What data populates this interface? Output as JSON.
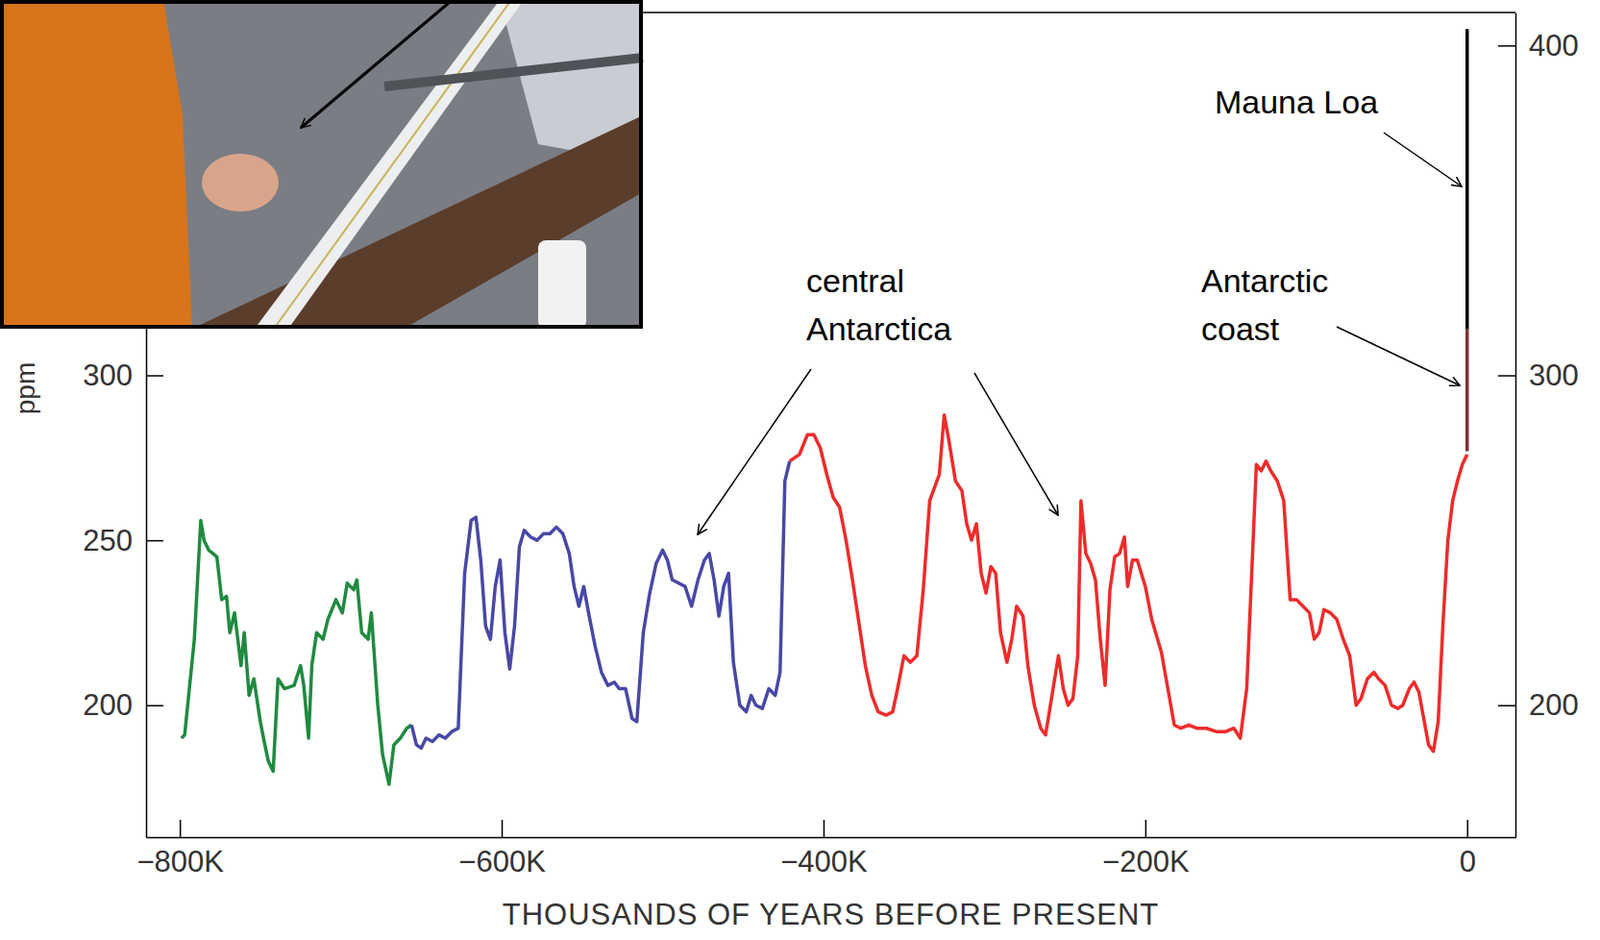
{
  "chart_data": {
    "type": "line",
    "xlabel": "THOUSANDS OF YEARS BEFORE PRESENT",
    "ylabel": "ppm",
    "xlim": [
      -821,
      30
    ],
    "ylim": [
      160,
      410
    ],
    "y2lim": [
      160,
      410
    ],
    "xticks": [
      {
        "value": -800,
        "label": "−800K"
      },
      {
        "value": -600,
        "label": "−600K"
      },
      {
        "value": -400,
        "label": "−400K"
      },
      {
        "value": -200,
        "label": "−200K"
      },
      0
    ],
    "yticks": [
      200,
      250,
      300
    ],
    "y2ticks": [
      200,
      300,
      400
    ],
    "annotations": [
      {
        "text": "Mauna Loa"
      },
      {
        "text": "central Antarctica"
      },
      {
        "text": "Antarctic coast"
      }
    ],
    "series": [
      {
        "color": "#1f8a3f",
        "x": [
          -799,
          -797,
          -791,
          -787,
          -785,
          -782,
          -777,
          -774,
          -771,
          -769,
          -766,
          -762,
          -760,
          -757,
          -754,
          -750,
          -748,
          -745,
          -743,
          -742,
          -739,
          -735,
          -729,
          -725,
          -723,
          -720,
          -718,
          -715,
          -711,
          -708,
          -703,
          -699,
          -696,
          -692,
          -690,
          -687,
          -683,
          -681,
          -677,
          -674,
          -670,
          -667,
          -663,
          -659,
          -656
        ],
        "values": [
          190,
          191,
          220,
          256,
          250,
          247,
          245,
          232,
          233,
          222,
          228,
          212,
          222,
          203,
          208,
          195,
          190,
          183,
          181,
          180,
          208,
          205,
          206,
          212,
          206,
          190,
          212,
          222,
          220,
          226,
          232,
          228,
          237,
          235,
          238,
          222,
          220,
          228,
          200,
          185,
          176,
          188,
          190,
          193,
          194
        ]
      },
      {
        "color": "#4848a6",
        "x": [
          -656,
          -653,
          -650,
          -647,
          -643,
          -639,
          -635,
          -631,
          -627,
          -623,
          -619,
          -616,
          -613,
          -610,
          -607,
          -604,
          -601,
          -598,
          -595,
          -592,
          -589,
          -586,
          -582,
          -578,
          -574,
          -570,
          -566,
          -562,
          -558,
          -555,
          -552,
          -549,
          -546,
          -542,
          -538,
          -534,
          -530,
          -527,
          -523,
          -519,
          -516,
          -512,
          -508,
          -504,
          -500,
          -497,
          -494,
          -490,
          -486,
          -482,
          -478,
          -474,
          -471,
          -468,
          -465,
          -462,
          -459,
          -456,
          -452,
          -448,
          -445,
          -442,
          -438,
          -434,
          -430,
          -427,
          -424,
          -421
        ],
        "values": [
          194,
          188,
          187,
          190,
          189,
          191,
          190,
          192,
          193,
          240,
          256,
          257,
          244,
          224,
          220,
          236,
          244,
          222,
          211,
          224,
          248,
          253,
          251,
          250,
          252,
          252,
          254,
          252,
          246,
          236,
          230,
          236,
          228,
          218,
          210,
          206,
          207,
          205,
          205,
          196,
          195,
          222,
          234,
          243,
          247,
          244,
          238,
          237,
          236,
          230,
          238,
          244,
          246,
          238,
          227,
          236,
          240,
          213,
          200,
          198,
          203,
          200,
          199,
          205,
          203,
          210,
          268,
          274
        ]
      },
      {
        "color": "#ee2b2b",
        "x": [
          -421,
          -415,
          -410,
          -406,
          -402,
          -398,
          -394,
          -390,
          -386,
          -382,
          -378,
          -374,
          -370,
          -366,
          -361,
          -357,
          -354,
          -350,
          -346,
          -342,
          -338,
          -334,
          -328,
          -325,
          -322,
          -318,
          -314,
          -311,
          -308,
          -305,
          -302,
          -299,
          -296,
          -293,
          -290,
          -286,
          -283,
          -280,
          -276,
          -273,
          -269,
          -265,
          -262,
          -258,
          -254,
          -251,
          -248,
          -245,
          -242,
          -240,
          -237,
          -234,
          -231,
          -228,
          -225,
          -222,
          -219,
          -216,
          -213,
          -211,
          -208,
          -205,
          -200,
          -196,
          -190,
          -186,
          -182,
          -178,
          -173,
          -168,
          -162,
          -156,
          -150,
          -145,
          -141,
          -137,
          -133,
          -131,
          -128,
          -125,
          -122,
          -118,
          -114,
          -110,
          -106,
          -102,
          -98,
          -95,
          -92,
          -89,
          -85,
          -81,
          -77,
          -73,
          -69,
          -66,
          -62,
          -58,
          -55,
          -51,
          -47,
          -43,
          -40,
          -36,
          -33,
          -30,
          -27,
          -24,
          -21,
          -18,
          -15,
          -12,
          -9,
          -6,
          -3,
          0
        ],
        "values": [
          274,
          276,
          282,
          282,
          278,
          270,
          263,
          260,
          250,
          238,
          225,
          212,
          203,
          198,
          197,
          198,
          205,
          215,
          213,
          215,
          235,
          262,
          270,
          288,
          280,
          268,
          265,
          255,
          250,
          255,
          240,
          234,
          242,
          240,
          222,
          213,
          220,
          230,
          227,
          212,
          200,
          193,
          191,
          203,
          215,
          205,
          200,
          202,
          215,
          262,
          246,
          243,
          238,
          220,
          206,
          235,
          245,
          246,
          251,
          236,
          244,
          244,
          236,
          226,
          216,
          205,
          194,
          193,
          194,
          193,
          193,
          192,
          192,
          193,
          190,
          205,
          250,
          273,
          271,
          274,
          271,
          268,
          262,
          232,
          232,
          230,
          228,
          220,
          222,
          229,
          228,
          226,
          220,
          215,
          200,
          202,
          208,
          210,
          208,
          206,
          200,
          199,
          200,
          205,
          207,
          204,
          196,
          188,
          186,
          195,
          225,
          250,
          262,
          268,
          273,
          276
        ]
      },
      {
        "color": "#7a3434",
        "x": [
          0,
          0
        ],
        "values": [
          277,
          314
        ]
      },
      {
        "color": "#000000",
        "x": [
          0,
          0
        ],
        "values": [
          314,
          405
        ]
      }
    ]
  }
}
